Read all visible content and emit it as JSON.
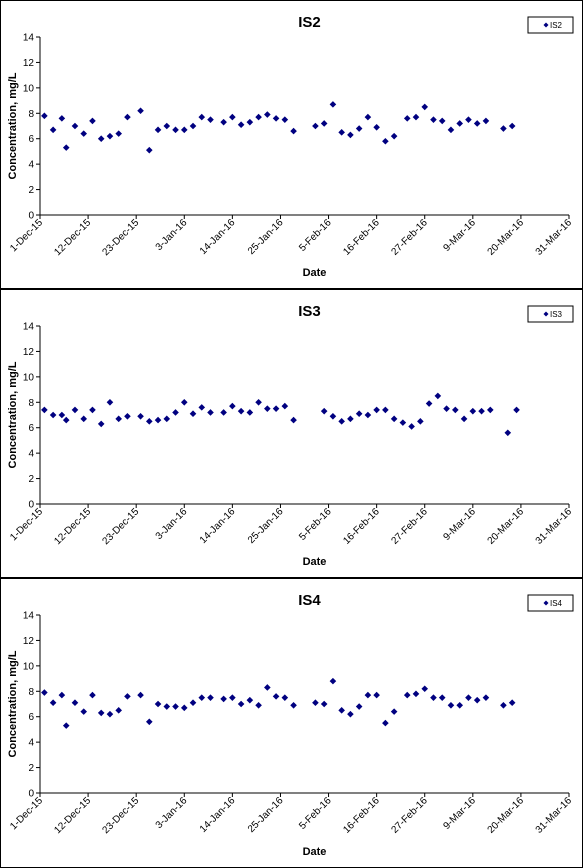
{
  "chart_data": [
    {
      "type": "scatter",
      "title": "IS2",
      "xlabel": "Date",
      "ylabel": "Concentration, mg/L",
      "ylim": [
        0,
        14
      ],
      "yticks": [
        "0",
        "2",
        "4",
        "6",
        "8",
        "10",
        "12",
        "14"
      ],
      "xlim": [
        "2015-12-01",
        "2016-03-31"
      ],
      "xticks": [
        "1-Dec-15",
        "12-Dec-15",
        "23-Dec-15",
        "3-Jan-16",
        "14-Jan-16",
        "25-Jan-16",
        "5-Feb-16",
        "16-Feb-16",
        "27-Feb-16",
        "9-Mar-16",
        "20-Mar-16",
        "31-Mar-16"
      ],
      "grid": false,
      "legend": "top-right",
      "series": [
        {
          "name": "IS2",
          "color": "#000080",
          "points": [
            [
              "2015-12-02",
              7.8
            ],
            [
              "2015-12-04",
              6.7
            ],
            [
              "2015-12-06",
              7.6
            ],
            [
              "2015-12-07",
              5.3
            ],
            [
              "2015-12-09",
              7.0
            ],
            [
              "2015-12-11",
              6.4
            ],
            [
              "2015-12-13",
              7.4
            ],
            [
              "2015-12-15",
              6.0
            ],
            [
              "2015-12-17",
              6.2
            ],
            [
              "2015-12-19",
              6.4
            ],
            [
              "2015-12-21",
              7.7
            ],
            [
              "2015-12-24",
              8.2
            ],
            [
              "2015-12-26",
              5.1
            ],
            [
              "2015-12-28",
              6.7
            ],
            [
              "2015-12-30",
              7.0
            ],
            [
              "2016-01-01",
              6.7
            ],
            [
              "2016-01-03",
              6.7
            ],
            [
              "2016-01-05",
              7.0
            ],
            [
              "2016-01-07",
              7.7
            ],
            [
              "2016-01-09",
              7.5
            ],
            [
              "2016-01-12",
              7.3
            ],
            [
              "2016-01-14",
              7.7
            ],
            [
              "2016-01-16",
              7.1
            ],
            [
              "2016-01-18",
              7.3
            ],
            [
              "2016-01-20",
              7.7
            ],
            [
              "2016-01-22",
              7.9
            ],
            [
              "2016-01-24",
              7.6
            ],
            [
              "2016-01-26",
              7.5
            ],
            [
              "2016-01-28",
              6.6
            ],
            [
              "2016-02-02",
              7.0
            ],
            [
              "2016-02-04",
              7.2
            ],
            [
              "2016-02-06",
              8.7
            ],
            [
              "2016-02-08",
              6.5
            ],
            [
              "2016-02-10",
              6.3
            ],
            [
              "2016-02-12",
              6.8
            ],
            [
              "2016-02-14",
              7.7
            ],
            [
              "2016-02-16",
              6.9
            ],
            [
              "2016-02-18",
              5.8
            ],
            [
              "2016-02-20",
              6.2
            ],
            [
              "2016-02-23",
              7.6
            ],
            [
              "2016-02-25",
              7.7
            ],
            [
              "2016-02-27",
              8.5
            ],
            [
              "2016-02-29",
              7.5
            ],
            [
              "2016-03-02",
              7.4
            ],
            [
              "2016-03-04",
              6.7
            ],
            [
              "2016-03-06",
              7.2
            ],
            [
              "2016-03-08",
              7.5
            ],
            [
              "2016-03-10",
              7.2
            ],
            [
              "2016-03-12",
              7.4
            ],
            [
              "2016-03-16",
              6.8
            ],
            [
              "2016-03-18",
              7.0
            ]
          ]
        }
      ]
    },
    {
      "type": "scatter",
      "title": "IS3",
      "xlabel": "Date",
      "ylabel": "Concentration, mg/L",
      "ylim": [
        0,
        14
      ],
      "yticks": [
        "0",
        "2",
        "4",
        "6",
        "8",
        "10",
        "12",
        "14"
      ],
      "xlim": [
        "2015-12-01",
        "2016-03-31"
      ],
      "xticks": [
        "1-Dec-15",
        "12-Dec-15",
        "23-Dec-15",
        "3-Jan-16",
        "14-Jan-16",
        "25-Jan-16",
        "5-Feb-16",
        "16-Feb-16",
        "27-Feb-16",
        "9-Mar-16",
        "20-Mar-16",
        "31-Mar-16"
      ],
      "grid": false,
      "legend": "top-right",
      "series": [
        {
          "name": "IS3",
          "color": "#000080",
          "points": [
            [
              "2015-12-02",
              7.4
            ],
            [
              "2015-12-04",
              7.0
            ],
            [
              "2015-12-06",
              7.0
            ],
            [
              "2015-12-07",
              6.6
            ],
            [
              "2015-12-09",
              7.4
            ],
            [
              "2015-12-11",
              6.7
            ],
            [
              "2015-12-13",
              7.4
            ],
            [
              "2015-12-15",
              6.3
            ],
            [
              "2015-12-17",
              8.0
            ],
            [
              "2015-12-19",
              6.7
            ],
            [
              "2015-12-21",
              6.9
            ],
            [
              "2015-12-24",
              6.9
            ],
            [
              "2015-12-26",
              6.5
            ],
            [
              "2015-12-28",
              6.6
            ],
            [
              "2015-12-30",
              6.7
            ],
            [
              "2016-01-01",
              7.2
            ],
            [
              "2016-01-03",
              8.0
            ],
            [
              "2016-01-05",
              7.1
            ],
            [
              "2016-01-07",
              7.6
            ],
            [
              "2016-01-09",
              7.2
            ],
            [
              "2016-01-12",
              7.2
            ],
            [
              "2016-01-14",
              7.7
            ],
            [
              "2016-01-16",
              7.3
            ],
            [
              "2016-01-18",
              7.2
            ],
            [
              "2016-01-20",
              8.0
            ],
            [
              "2016-01-22",
              7.5
            ],
            [
              "2016-01-24",
              7.5
            ],
            [
              "2016-01-26",
              7.7
            ],
            [
              "2016-01-28",
              6.6
            ],
            [
              "2016-02-04",
              7.3
            ],
            [
              "2016-02-06",
              6.9
            ],
            [
              "2016-02-08",
              6.5
            ],
            [
              "2016-02-10",
              6.7
            ],
            [
              "2016-02-12",
              7.1
            ],
            [
              "2016-02-14",
              7.0
            ],
            [
              "2016-02-16",
              7.4
            ],
            [
              "2016-02-18",
              7.4
            ],
            [
              "2016-02-20",
              6.7
            ],
            [
              "2016-02-22",
              6.4
            ],
            [
              "2016-02-24",
              6.1
            ],
            [
              "2016-02-26",
              6.5
            ],
            [
              "2016-02-28",
              7.9
            ],
            [
              "2016-03-01",
              8.5
            ],
            [
              "2016-03-03",
              7.5
            ],
            [
              "2016-03-05",
              7.4
            ],
            [
              "2016-03-07",
              6.7
            ],
            [
              "2016-03-09",
              7.3
            ],
            [
              "2016-03-11",
              7.3
            ],
            [
              "2016-03-13",
              7.4
            ],
            [
              "2016-03-17",
              5.6
            ],
            [
              "2016-03-19",
              7.4
            ]
          ]
        }
      ]
    },
    {
      "type": "scatter",
      "title": "IS4",
      "xlabel": "Date",
      "ylabel": "Concentration, mg/L",
      "ylim": [
        0,
        14
      ],
      "yticks": [
        "0",
        "2",
        "4",
        "6",
        "8",
        "10",
        "12",
        "14"
      ],
      "xlim": [
        "2015-12-01",
        "2016-03-31"
      ],
      "xticks": [
        "1-Dec-15",
        "12-Dec-15",
        "23-Dec-15",
        "3-Jan-16",
        "14-Jan-16",
        "25-Jan-16",
        "5-Feb-16",
        "16-Feb-16",
        "27-Feb-16",
        "9-Mar-16",
        "20-Mar-16",
        "31-Mar-16"
      ],
      "grid": false,
      "legend": "top-right",
      "series": [
        {
          "name": "IS4",
          "color": "#000080",
          "points": [
            [
              "2015-12-02",
              7.9
            ],
            [
              "2015-12-04",
              7.1
            ],
            [
              "2015-12-06",
              7.7
            ],
            [
              "2015-12-07",
              5.3
            ],
            [
              "2015-12-09",
              7.1
            ],
            [
              "2015-12-11",
              6.4
            ],
            [
              "2015-12-13",
              7.7
            ],
            [
              "2015-12-15",
              6.3
            ],
            [
              "2015-12-17",
              6.2
            ],
            [
              "2015-12-19",
              6.5
            ],
            [
              "2015-12-21",
              7.6
            ],
            [
              "2015-12-24",
              7.7
            ],
            [
              "2015-12-26",
              5.6
            ],
            [
              "2015-12-28",
              7.0
            ],
            [
              "2015-12-30",
              6.8
            ],
            [
              "2016-01-01",
              6.8
            ],
            [
              "2016-01-03",
              6.7
            ],
            [
              "2016-01-05",
              7.1
            ],
            [
              "2016-01-07",
              7.5
            ],
            [
              "2016-01-09",
              7.5
            ],
            [
              "2016-01-12",
              7.4
            ],
            [
              "2016-01-14",
              7.5
            ],
            [
              "2016-01-16",
              7.0
            ],
            [
              "2016-01-18",
              7.3
            ],
            [
              "2016-01-20",
              6.9
            ],
            [
              "2016-01-22",
              8.3
            ],
            [
              "2016-01-24",
              7.6
            ],
            [
              "2016-01-26",
              7.5
            ],
            [
              "2016-01-28",
              6.9
            ],
            [
              "2016-02-02",
              7.1
            ],
            [
              "2016-02-04",
              7.0
            ],
            [
              "2016-02-06",
              8.8
            ],
            [
              "2016-02-08",
              6.5
            ],
            [
              "2016-02-10",
              6.2
            ],
            [
              "2016-02-12",
              6.8
            ],
            [
              "2016-02-14",
              7.7
            ],
            [
              "2016-02-16",
              7.7
            ],
            [
              "2016-02-18",
              5.5
            ],
            [
              "2016-02-20",
              6.4
            ],
            [
              "2016-02-23",
              7.7
            ],
            [
              "2016-02-25",
              7.8
            ],
            [
              "2016-02-27",
              8.2
            ],
            [
              "2016-02-29",
              7.5
            ],
            [
              "2016-03-02",
              7.5
            ],
            [
              "2016-03-04",
              6.9
            ],
            [
              "2016-03-06",
              6.9
            ],
            [
              "2016-03-08",
              7.5
            ],
            [
              "2016-03-10",
              7.3
            ],
            [
              "2016-03-12",
              7.5
            ],
            [
              "2016-03-16",
              6.9
            ],
            [
              "2016-03-18",
              7.1
            ]
          ]
        }
      ]
    }
  ]
}
